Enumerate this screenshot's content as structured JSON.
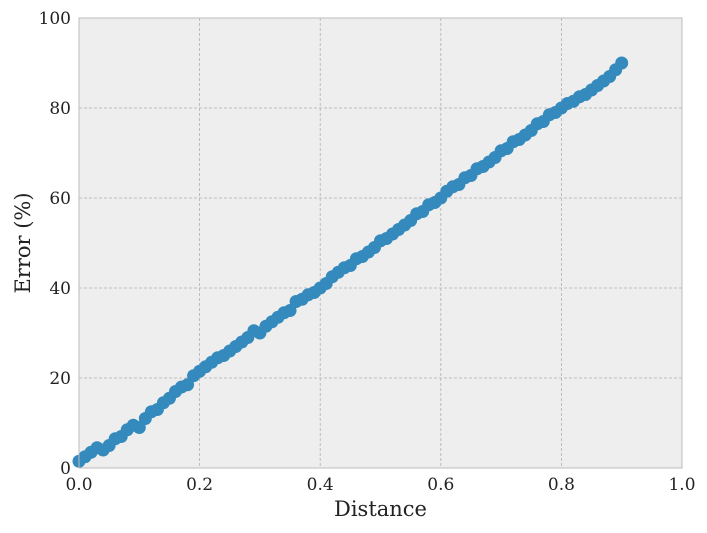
{
  "chart_data": {
    "type": "scatter",
    "title": "",
    "xlabel": "Distance",
    "ylabel": "Error (%)",
    "xlim": [
      0.0,
      1.0
    ],
    "ylim": [
      0,
      100
    ],
    "xticks": [
      "0.0",
      "0.2",
      "0.4",
      "0.6",
      "0.8",
      "1.0"
    ],
    "yticks": [
      "0",
      "20",
      "40",
      "60",
      "80",
      "100"
    ],
    "grid": true,
    "legend": "none",
    "colors": {
      "points": "#348abd",
      "plot_background": "#eeeeee",
      "grid": "#b0b0b0",
      "frame": "#bcbcbc"
    },
    "series": [
      {
        "x": [
          0.0,
          0.01,
          0.02,
          0.03,
          0.04,
          0.05,
          0.06,
          0.07,
          0.08,
          0.09,
          0.1,
          0.11,
          0.12,
          0.13,
          0.14,
          0.15,
          0.16,
          0.17,
          0.18,
          0.19,
          0.2,
          0.21,
          0.22,
          0.23,
          0.24,
          0.25,
          0.26,
          0.27,
          0.28,
          0.29,
          0.3,
          0.31,
          0.32,
          0.33,
          0.34,
          0.35,
          0.36,
          0.37,
          0.38,
          0.39,
          0.4,
          0.41,
          0.42,
          0.43,
          0.44,
          0.45,
          0.46,
          0.47,
          0.48,
          0.49,
          0.5,
          0.51,
          0.52,
          0.53,
          0.54,
          0.55,
          0.56,
          0.57,
          0.58,
          0.59,
          0.6,
          0.61,
          0.62,
          0.63,
          0.64,
          0.65,
          0.66,
          0.67,
          0.68,
          0.69,
          0.7,
          0.71,
          0.72,
          0.73,
          0.74,
          0.75,
          0.76,
          0.77,
          0.78,
          0.79,
          0.8,
          0.81,
          0.82,
          0.83,
          0.84,
          0.85,
          0.86,
          0.87,
          0.88,
          0.89,
          0.9
        ],
        "y": [
          1.5,
          2.5,
          3.5,
          4.5,
          4.0,
          5.0,
          6.5,
          7.0,
          8.5,
          9.5,
          9.0,
          11.0,
          12.5,
          13.0,
          14.5,
          15.5,
          17.0,
          18.0,
          18.5,
          20.5,
          21.5,
          22.5,
          23.5,
          24.5,
          25.0,
          26.0,
          27.0,
          28.0,
          29.0,
          30.5,
          30.0,
          31.5,
          32.5,
          33.5,
          34.5,
          35.0,
          37.0,
          37.5,
          38.5,
          39.0,
          40.0,
          41.0,
          42.5,
          43.5,
          44.5,
          45.0,
          46.5,
          47.0,
          48.0,
          49.0,
          50.5,
          51.0,
          52.0,
          53.0,
          54.0,
          55.0,
          56.5,
          57.0,
          58.5,
          59.0,
          60.0,
          61.5,
          62.5,
          63.0,
          64.5,
          65.0,
          66.5,
          67.0,
          68.0,
          69.0,
          70.5,
          71.0,
          72.5,
          73.0,
          74.0,
          75.0,
          76.5,
          77.0,
          78.5,
          79.0,
          80.0,
          81.0,
          81.5,
          82.5,
          83.0,
          84.0,
          85.0,
          86.0,
          87.0,
          88.5,
          90.0
        ]
      }
    ]
  }
}
